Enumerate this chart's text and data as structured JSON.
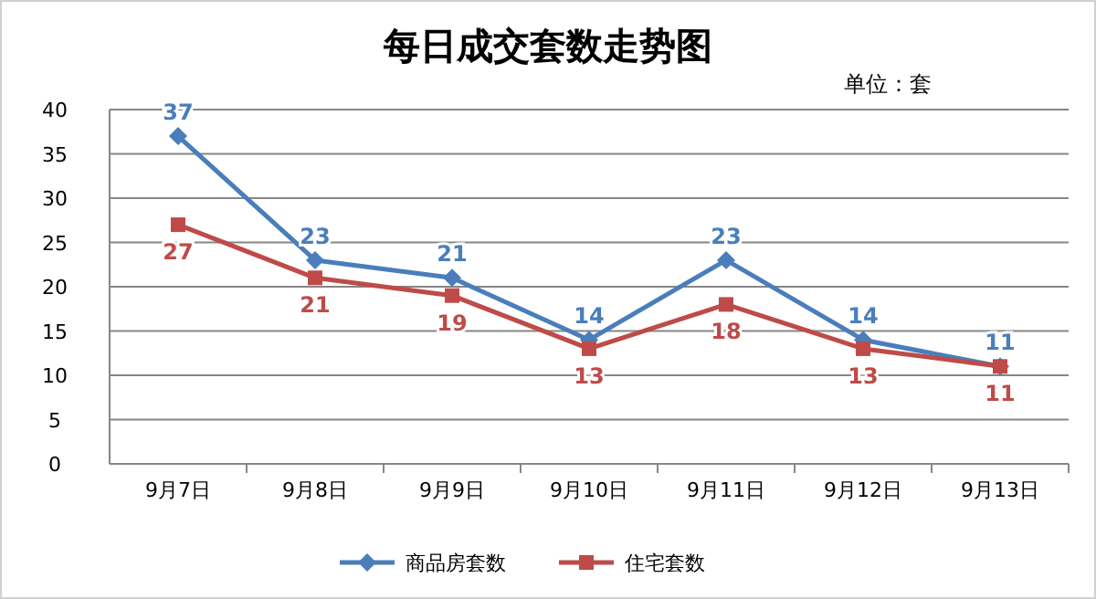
{
  "chart_data": {
    "type": "line",
    "title": "每日成交套数走势图",
    "annotations": [
      "单位：套"
    ],
    "categories": [
      "9月7日",
      "9月8日",
      "9月9日",
      "9月10日",
      "9月11日",
      "9月12日",
      "9月13日"
    ],
    "series": [
      {
        "name": "商品房套数",
        "color": "#4a7ebb",
        "marker": "diamond",
        "values": [
          37,
          23,
          21,
          14,
          23,
          14,
          11
        ]
      },
      {
        "name": "住宅套数",
        "color": "#be4b48",
        "marker": "square",
        "values": [
          27,
          21,
          19,
          13,
          18,
          13,
          11
        ]
      }
    ],
    "ylim": [
      0,
      40
    ],
    "yticks": [
      0,
      5,
      10,
      15,
      20,
      25,
      30,
      35,
      40
    ],
    "grid": "y",
    "legend": "bottom",
    "data_labels": true,
    "line_style": "solid"
  }
}
